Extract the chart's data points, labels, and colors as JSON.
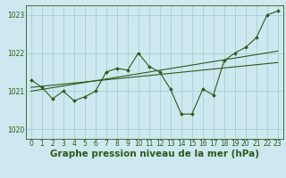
{
  "title": "Graphe pression niveau de la mer (hPa)",
  "bg_color": "#cde8ee",
  "grid_color": "#9dcad4",
  "line_color": "#2d5a1b",
  "xlim": [
    -0.5,
    23.5
  ],
  "ylim": [
    1019.75,
    1023.25
  ],
  "yticks": [
    1020,
    1021,
    1022,
    1023
  ],
  "xticks": [
    0,
    1,
    2,
    3,
    4,
    5,
    6,
    7,
    8,
    9,
    10,
    11,
    12,
    13,
    14,
    15,
    16,
    17,
    18,
    19,
    20,
    21,
    22,
    23
  ],
  "hours": [
    0,
    1,
    2,
    3,
    4,
    5,
    6,
    7,
    8,
    9,
    10,
    11,
    12,
    13,
    14,
    15,
    16,
    17,
    18,
    19,
    20,
    21,
    22,
    23
  ],
  "pressure": [
    1021.3,
    1021.1,
    1020.8,
    1021.0,
    1020.75,
    1020.85,
    1021.0,
    1021.5,
    1021.6,
    1021.55,
    1022.0,
    1021.65,
    1021.5,
    1021.05,
    1020.4,
    1020.4,
    1021.05,
    1020.9,
    1021.8,
    1022.0,
    1022.15,
    1022.4,
    1023.0,
    1023.1
  ],
  "trend1_x": [
    0,
    23
  ],
  "trend1_y": [
    1021.1,
    1021.75
  ],
  "trend2_x": [
    0,
    23
  ],
  "trend2_y": [
    1021.0,
    1022.05
  ],
  "tick_fontsize": 5.5,
  "label_fontsize": 7.5
}
